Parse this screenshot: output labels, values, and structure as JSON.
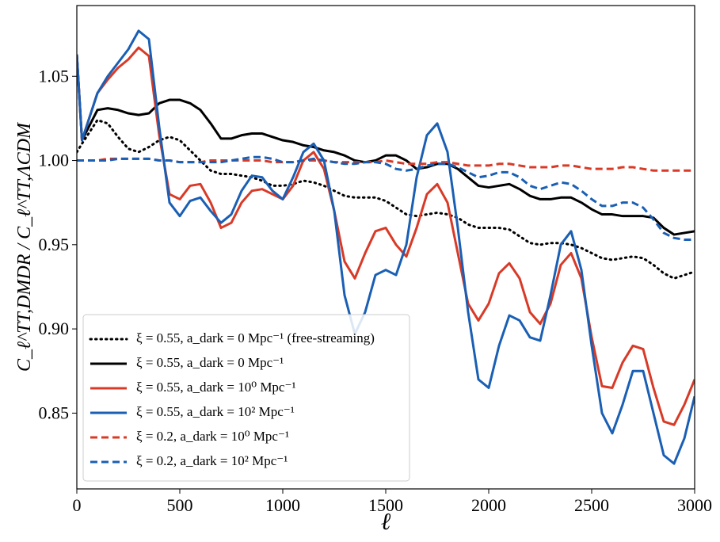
{
  "chart_data": {
    "type": "line",
    "x_label": "ℓ",
    "y_label": "C_ℓ^TT,DMDR / C_ℓ^TT,ΛCDM",
    "xlim": [
      0,
      3000
    ],
    "ylim": [
      0.805,
      1.092
    ],
    "xticks": [
      0,
      500,
      1000,
      1500,
      2000,
      2500,
      3000
    ],
    "yticks": [
      {
        "value": 0.85,
        "label": "0.85"
      },
      {
        "value": 0.9,
        "label": "0.90"
      },
      {
        "value": 0.95,
        "label": "0.95"
      },
      {
        "value": 1.0,
        "label": "1.00"
      },
      {
        "value": 1.05,
        "label": "1.05"
      }
    ],
    "legend": "lower left",
    "x": [
      0,
      25,
      100,
      150,
      200,
      250,
      300,
      350,
      400,
      450,
      500,
      550,
      600,
      650,
      700,
      750,
      800,
      850,
      900,
      950,
      1000,
      1050,
      1100,
      1150,
      1200,
      1250,
      1300,
      1350,
      1400,
      1450,
      1500,
      1550,
      1600,
      1650,
      1700,
      1750,
      1800,
      1850,
      1900,
      1950,
      2000,
      2050,
      2100,
      2150,
      2200,
      2250,
      2300,
      2350,
      2400,
      2450,
      2500,
      2550,
      2600,
      2650,
      2700,
      2750,
      2800,
      2850,
      2900,
      2950,
      3000
    ],
    "series": [
      {
        "name": "ξ = 0.55, a_dark = 0 Mpc⁻¹ (free-streaming)",
        "color": "#000000",
        "style": "dotted",
        "values": [
          1.005,
          1.01,
          1.024,
          1.022,
          1.014,
          1.007,
          1.005,
          1.008,
          1.012,
          1.014,
          1.012,
          1.006,
          1.0,
          0.994,
          0.992,
          0.992,
          0.991,
          0.99,
          0.988,
          0.985,
          0.985,
          0.986,
          0.988,
          0.987,
          0.985,
          0.982,
          0.979,
          0.978,
          0.978,
          0.978,
          0.976,
          0.972,
          0.968,
          0.967,
          0.968,
          0.969,
          0.968,
          0.966,
          0.962,
          0.96,
          0.96,
          0.96,
          0.959,
          0.955,
          0.951,
          0.95,
          0.951,
          0.951,
          0.95,
          0.948,
          0.945,
          0.942,
          0.941,
          0.942,
          0.943,
          0.942,
          0.938,
          0.933,
          0.93,
          0.932,
          0.934
        ]
      },
      {
        "name": "ξ = 0.55, a_dark = 0 Mpc⁻¹",
        "color": "#000000",
        "style": "solid",
        "values": [
          1.063,
          1.012,
          1.03,
          1.031,
          1.03,
          1.028,
          1.027,
          1.028,
          1.034,
          1.036,
          1.036,
          1.034,
          1.03,
          1.022,
          1.013,
          1.013,
          1.015,
          1.016,
          1.016,
          1.014,
          1.012,
          1.011,
          1.009,
          1.008,
          1.006,
          1.005,
          1.003,
          1.0,
          0.999,
          1.0,
          1.003,
          1.003,
          1.0,
          0.995,
          0.996,
          0.998,
          0.998,
          0.995,
          0.99,
          0.985,
          0.984,
          0.985,
          0.986,
          0.983,
          0.979,
          0.977,
          0.977,
          0.978,
          0.978,
          0.975,
          0.971,
          0.968,
          0.968,
          0.967,
          0.967,
          0.967,
          0.966,
          0.96,
          0.956,
          0.957,
          0.958
        ]
      },
      {
        "name": "ξ = 0.55, a_dark = 10⁰ Mpc⁻¹",
        "color": "#d83a27",
        "style": "solid",
        "values": [
          1.063,
          1.012,
          1.04,
          1.048,
          1.055,
          1.06,
          1.067,
          1.062,
          1.015,
          0.98,
          0.977,
          0.985,
          0.986,
          0.975,
          0.96,
          0.963,
          0.975,
          0.982,
          0.983,
          0.98,
          0.977,
          0.985,
          1.0,
          1.005,
          0.995,
          0.97,
          0.94,
          0.93,
          0.945,
          0.958,
          0.96,
          0.95,
          0.943,
          0.96,
          0.98,
          0.986,
          0.975,
          0.945,
          0.915,
          0.905,
          0.915,
          0.933,
          0.939,
          0.93,
          0.91,
          0.903,
          0.915,
          0.938,
          0.945,
          0.93,
          0.895,
          0.866,
          0.865,
          0.88,
          0.89,
          0.888,
          0.865,
          0.845,
          0.843,
          0.855,
          0.87
        ]
      },
      {
        "name": "ξ = 0.55, a_dark = 10² Mpc⁻¹",
        "color": "#1a5fb4",
        "style": "solid",
        "values": [
          1.063,
          1.012,
          1.04,
          1.05,
          1.058,
          1.066,
          1.077,
          1.072,
          1.02,
          0.975,
          0.967,
          0.976,
          0.978,
          0.97,
          0.963,
          0.968,
          0.982,
          0.991,
          0.99,
          0.982,
          0.977,
          0.99,
          1.005,
          1.01,
          1.0,
          0.97,
          0.92,
          0.897,
          0.91,
          0.932,
          0.935,
          0.932,
          0.95,
          0.99,
          1.015,
          1.022,
          1.005,
          0.96,
          0.91,
          0.87,
          0.865,
          0.89,
          0.908,
          0.905,
          0.895,
          0.893,
          0.92,
          0.95,
          0.958,
          0.935,
          0.89,
          0.85,
          0.838,
          0.855,
          0.875,
          0.875,
          0.85,
          0.825,
          0.82,
          0.835,
          0.86
        ]
      },
      {
        "name": "ξ = 0.2, a_dark = 10⁰ Mpc⁻¹",
        "color": "#d83a27",
        "style": "dashed",
        "values": [
          1.0,
          1.0,
          1.0,
          1.001,
          1.001,
          1.001,
          1.001,
          1.001,
          1.0,
          1.0,
          0.999,
          0.999,
          0.999,
          1.0,
          1.0,
          1.0,
          1.0,
          1.0,
          1.0,
          0.999,
          0.999,
          0.999,
          1.0,
          1.0,
          1.0,
          0.999,
          0.999,
          0.999,
          0.999,
          0.999,
          1.0,
          0.999,
          0.998,
          0.998,
          0.998,
          0.999,
          0.999,
          0.998,
          0.997,
          0.997,
          0.997,
          0.998,
          0.998,
          0.997,
          0.996,
          0.996,
          0.996,
          0.997,
          0.997,
          0.996,
          0.995,
          0.995,
          0.995,
          0.996,
          0.996,
          0.995,
          0.994,
          0.994,
          0.994,
          0.994,
          0.994
        ]
      },
      {
        "name": "ξ = 0.2, a_dark = 10² Mpc⁻¹",
        "color": "#1a5fb4",
        "style": "dashed",
        "values": [
          1.0,
          1.0,
          1.0,
          1.0,
          1.001,
          1.001,
          1.001,
          1.001,
          1.0,
          1.0,
          0.999,
          0.999,
          0.999,
          0.999,
          0.999,
          1.0,
          1.001,
          1.002,
          1.002,
          1.001,
          0.999,
          0.999,
          1.0,
          1.001,
          1.0,
          0.999,
          0.998,
          0.998,
          0.999,
          0.999,
          0.998,
          0.995,
          0.994,
          0.995,
          0.997,
          0.998,
          0.998,
          0.996,
          0.993,
          0.99,
          0.991,
          0.993,
          0.993,
          0.99,
          0.985,
          0.983,
          0.985,
          0.987,
          0.986,
          0.982,
          0.977,
          0.973,
          0.973,
          0.975,
          0.975,
          0.972,
          0.965,
          0.957,
          0.954,
          0.953,
          0.953
        ]
      }
    ]
  }
}
